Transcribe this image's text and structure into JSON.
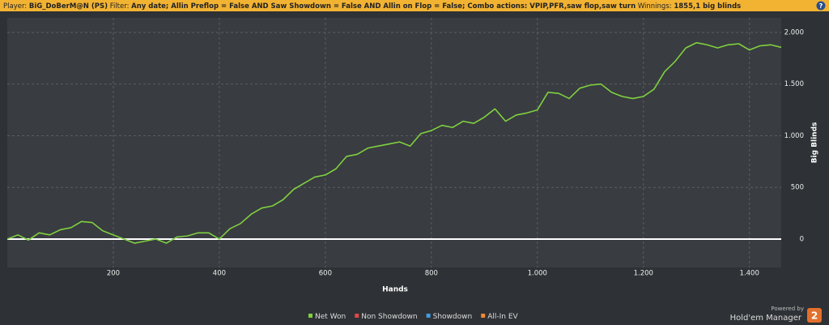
{
  "header": {
    "player_label": "Player:",
    "player": "BiG_DoBerM@N (PS)",
    "filter_label": "Filter:",
    "filter": "Any date; Allin Preflop = False AND Saw Showdown = False AND Allin on Flop = False; Combo actions: VPIP,PFR,saw flop,saw turn",
    "winnings_label": "Winnings:",
    "winnings": "1855,1 big blinds",
    "help": "?"
  },
  "chart_data": {
    "type": "line",
    "xlabel": "Hands",
    "ylabel": "Big Blinds",
    "x": [
      0,
      20,
      40,
      60,
      80,
      100,
      120,
      140,
      160,
      180,
      200,
      220,
      240,
      260,
      280,
      300,
      320,
      340,
      360,
      380,
      400,
      420,
      440,
      460,
      480,
      500,
      520,
      540,
      560,
      580,
      600,
      620,
      640,
      660,
      680,
      700,
      720,
      740,
      760,
      780,
      800,
      820,
      840,
      860,
      880,
      900,
      920,
      940,
      960,
      980,
      1000,
      1020,
      1040,
      1060,
      1080,
      1100,
      1120,
      1140,
      1160,
      1180,
      1200,
      1220,
      1240,
      1260,
      1280,
      1300,
      1320,
      1340,
      1360,
      1380,
      1400,
      1420,
      1440,
      1460
    ],
    "series": [
      {
        "name": "Net Won",
        "color": "#7fd040",
        "values": [
          0,
          40,
          -10,
          60,
          40,
          90,
          110,
          170,
          160,
          80,
          40,
          0,
          -40,
          -20,
          0,
          -40,
          20,
          30,
          60,
          60,
          0,
          100,
          150,
          240,
          300,
          320,
          380,
          480,
          540,
          600,
          620,
          680,
          800,
          820,
          880,
          900,
          920,
          940,
          900,
          1020,
          1050,
          1100,
          1080,
          1140,
          1120,
          1180,
          1260,
          1140,
          1200,
          1220,
          1250,
          1420,
          1410,
          1360,
          1460,
          1490,
          1500,
          1420,
          1380,
          1360,
          1380,
          1450,
          1620,
          1720,
          1850,
          1900,
          1880,
          1850,
          1880,
          1890,
          1830,
          1870,
          1880,
          1855
        ]
      }
    ],
    "other_legend": [
      {
        "name": "Non Showdown",
        "color": "#e04848"
      },
      {
        "name": "Showdown",
        "color": "#3f9be0"
      },
      {
        "name": "All-In EV",
        "color": "#f08a30"
      }
    ],
    "xlim": [
      0,
      1460
    ],
    "xticks": [
      200,
      400,
      600,
      800,
      {
        "value": 1000,
        "label": "1.000"
      },
      {
        "value": 1200,
        "label": "1.200"
      },
      {
        "value": 1400,
        "label": "1.400"
      }
    ],
    "ylim": [
      -275,
      2141
    ],
    "yticks": [
      0,
      500,
      {
        "value": 1000,
        "label": "1.000"
      },
      {
        "value": 1500,
        "label": "1.500"
      },
      {
        "value": 2000,
        "label": "2.000"
      }
    ],
    "grid": true,
    "zero_line_color": "#ffffff"
  },
  "footer": {
    "powered_by": "Powered by",
    "brand": "Hold'em Manager",
    "badge": "2"
  }
}
